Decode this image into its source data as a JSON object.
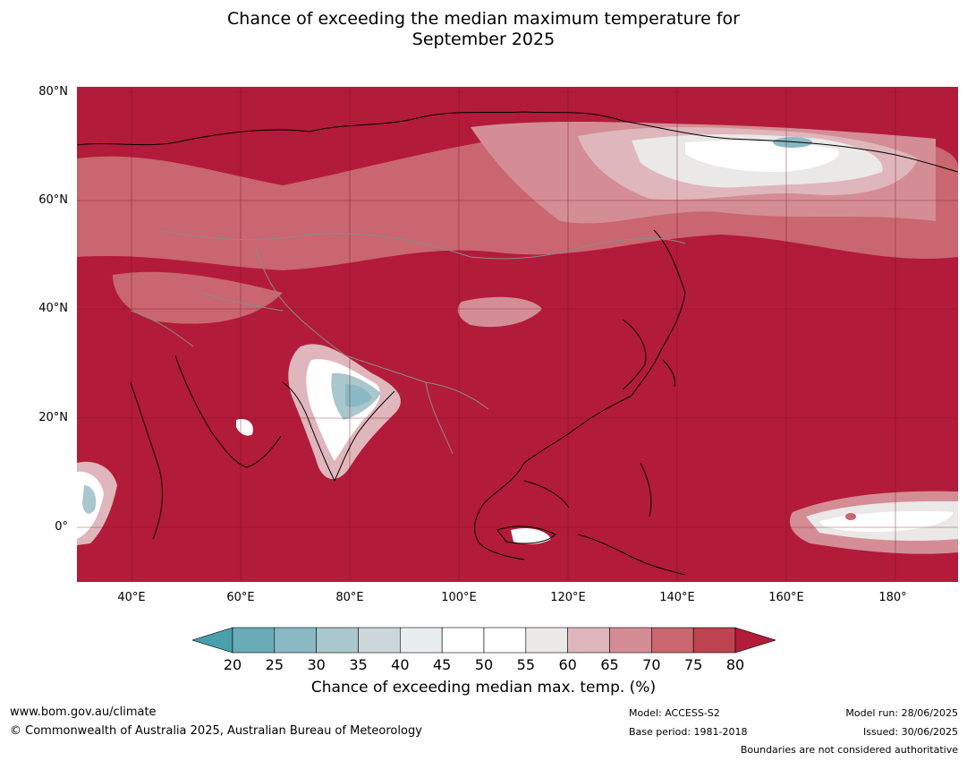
{
  "title_line1": "Chance of exceeding the median maximum temperature for",
  "title_line2": "September 2025",
  "lat_labels": [
    "80°N",
    "60°N",
    "40°N",
    "20°N",
    "0°"
  ],
  "lon_labels": [
    "40°E",
    "60°E",
    "80°E",
    "100°E",
    "120°E",
    "140°E",
    "160°E",
    "180°"
  ],
  "colorbar": {
    "ticks": [
      "20",
      "25",
      "30",
      "35",
      "40",
      "45",
      "50",
      "55",
      "60",
      "65",
      "70",
      "75",
      "80"
    ],
    "colors": [
      "#4a9fac",
      "#6aabb8",
      "#8ab9c4",
      "#a9c7cc",
      "#ccd7da",
      "#e8eeef",
      "#ffffff",
      "#ffffff",
      "#ebe8e8",
      "#dfb6bb",
      "#d48d95",
      "#c9666f",
      "#be4350",
      "#b31b3a"
    ],
    "label": "Chance of exceeding median max. temp. (%)"
  },
  "footer": {
    "url": "www.bom.gov.au/climate",
    "copyright": "© Commonwealth of Australia 2025, Australian Bureau of Meteorology",
    "model": "Model: ACCESS-S2",
    "base_period": "Base period: 1981-2018",
    "model_run": "Model run: 28/06/2025",
    "issued": "Issued: 30/06/2025",
    "disclaimer": "Boundaries are not considered authoritative"
  }
}
